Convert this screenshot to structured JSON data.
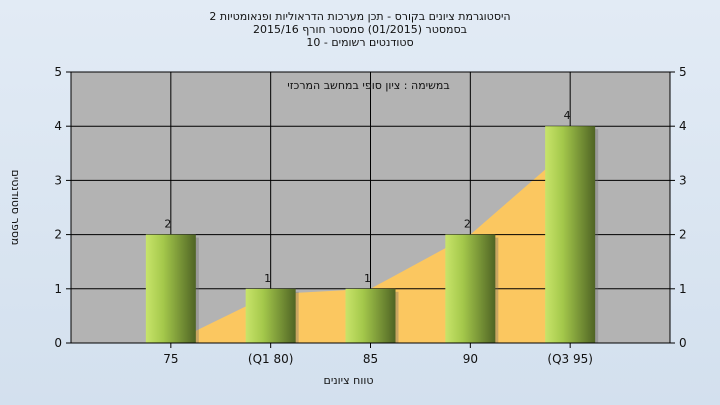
{
  "title_lines": [
    "היסטוגרמת ציונים בקורס - תכן מערכות הדראוליות ופנאומטיות 2",
    "בסמסטר  (01/2015)  סמסטר חורף 2015/16",
    "סטודנטים רשומים - 10"
  ],
  "colors": {
    "plot_bg": "#b3b3b3",
    "area": "#ffc85c",
    "bar_light": "#b7d95a",
    "bar_dark": "#4f6424"
  },
  "chart_data": {
    "type": "bar",
    "title": "היסטוגרמת ציונים בקורס - תכן מערכות הדראוליות ופנאומטיות 2",
    "subtitle": "בסמסטר  (01/2015)  סמסטר חורף 2015/16 — סטודנטים רשומים - 10",
    "annotation": "במשימה : ציון סופי במחשב המרכזי",
    "xlabel": "טווח ציונים",
    "ylabel": "מספר סטודנטים",
    "categories": [
      "75",
      "(Q1 80)",
      "85",
      "90",
      "(Q3 95)"
    ],
    "values": [
      2,
      1,
      1,
      2,
      4
    ],
    "data_labels": [
      "2",
      "1",
      "1",
      "2",
      "4"
    ],
    "ylim": [
      0,
      5
    ],
    "yticks": [
      "0",
      "1",
      "2",
      "3",
      "4",
      "5"
    ],
    "grid": true,
    "overlay": {
      "type": "area",
      "x": [
        "75",
        "(Q1 80)",
        "85",
        "90",
        "(Q3 95)"
      ],
      "values": [
        0,
        0.9,
        1,
        2,
        3.6
      ]
    }
  }
}
